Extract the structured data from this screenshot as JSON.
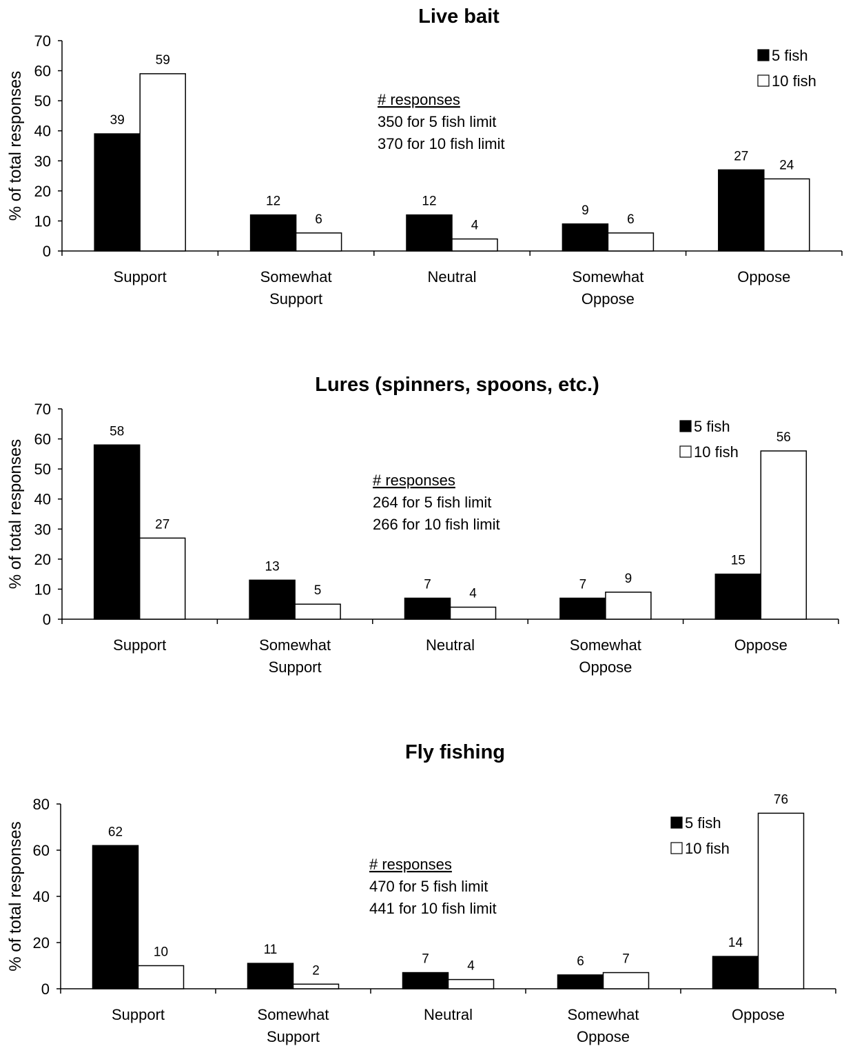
{
  "figure": {
    "description_panels": 3
  },
  "chart_data": [
    {
      "type": "bar",
      "title": "Live bait",
      "ylabel": "% of total responses",
      "xlabel": "",
      "ylim": [
        0,
        70
      ],
      "yticks": [
        0,
        10,
        20,
        30,
        40,
        50,
        60,
        70
      ],
      "categories": [
        [
          "Support"
        ],
        [
          "Somewhat",
          "Support"
        ],
        [
          "Neutral"
        ],
        [
          "Somewhat",
          "Oppose"
        ],
        [
          "Oppose"
        ]
      ],
      "series": [
        {
          "name": "5 fish",
          "color": "#000000",
          "values": [
            39,
            12,
            12,
            9,
            27
          ]
        },
        {
          "name": "10 fish",
          "color": "#ffffff",
          "values": [
            59,
            6,
            4,
            6,
            24
          ]
        }
      ],
      "legend_position": "top-right",
      "annotation": {
        "heading": "# responses",
        "lines": [
          "350 for 5 fish limit",
          "370 for 10 fish limit"
        ]
      },
      "grid": false
    },
    {
      "type": "bar",
      "title": "Lures (spinners, spoons, etc.)",
      "ylabel": "% of total responses",
      "xlabel": "",
      "ylim": [
        0,
        70
      ],
      "yticks": [
        0,
        10,
        20,
        30,
        40,
        50,
        60,
        70
      ],
      "categories": [
        [
          "Support"
        ],
        [
          "Somewhat",
          "Support"
        ],
        [
          "Neutral"
        ],
        [
          "Somewhat",
          "Oppose"
        ],
        [
          "Oppose"
        ]
      ],
      "series": [
        {
          "name": "5 fish",
          "color": "#000000",
          "values": [
            58,
            13,
            7,
            7,
            15
          ]
        },
        {
          "name": "10 fish",
          "color": "#ffffff",
          "values": [
            27,
            5,
            4,
            9,
            56
          ]
        }
      ],
      "legend_position": "top-right",
      "annotation": {
        "heading": "# responses",
        "lines": [
          "264 for 5 fish limit",
          "266 for 10 fish limit"
        ]
      },
      "grid": false
    },
    {
      "type": "bar",
      "title": "Fly fishing",
      "ylabel": "% of total responses",
      "xlabel": "",
      "ylim": [
        0,
        80
      ],
      "yticks": [
        0,
        20,
        40,
        60,
        80
      ],
      "categories": [
        [
          "Support"
        ],
        [
          "Somewhat",
          "Support"
        ],
        [
          "Neutral"
        ],
        [
          "Somewhat",
          "Oppose"
        ],
        [
          "Oppose"
        ]
      ],
      "series": [
        {
          "name": "5 fish",
          "color": "#000000",
          "values": [
            62,
            11,
            7,
            6,
            14
          ]
        },
        {
          "name": "10 fish",
          "color": "#ffffff",
          "values": [
            10,
            2,
            4,
            7,
            76
          ]
        }
      ],
      "legend_position": "top-right",
      "annotation": {
        "heading": "# responses",
        "lines": [
          "470 for 5 fish limit",
          "441 for 10 fish limit"
        ]
      },
      "grid": false
    }
  ]
}
